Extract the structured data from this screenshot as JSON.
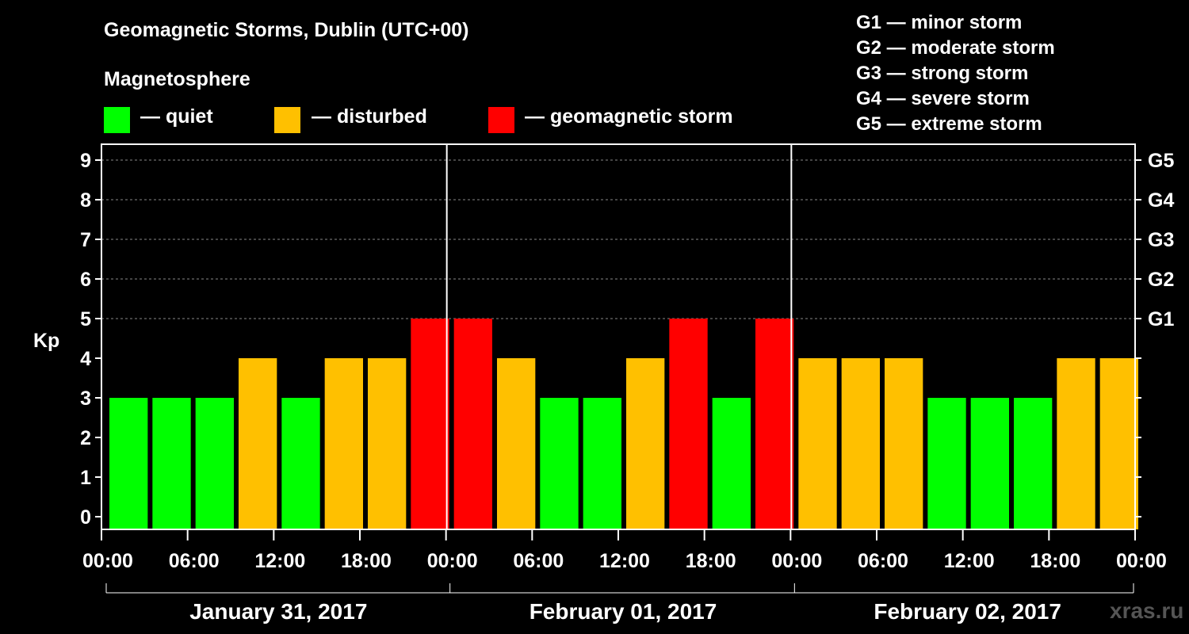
{
  "title": "Geomagnetic Storms, Dublin (UTC+00)",
  "magnetosphere": {
    "heading": "Magnetosphere",
    "items": [
      {
        "label": "— quiet",
        "color": "#00ff00"
      },
      {
        "label": "— disturbed",
        "color": "#ffc000"
      },
      {
        "label": "— geomagnetic storm",
        "color": "#ff0000"
      }
    ]
  },
  "storm_scale": [
    "G1 — minor storm",
    "G2 — moderate storm",
    "G3 — strong storm",
    "G4 — severe storm",
    "G5 — extreme storm"
  ],
  "watermark": "xras.ru",
  "chart_data": {
    "type": "bar",
    "title": "Geomagnetic Storms, Dublin (UTC+00)",
    "ylabel": "Kp",
    "ylim": [
      0,
      9
    ],
    "yticks": [
      "0",
      "1",
      "2",
      "3",
      "4",
      "5",
      "6",
      "7",
      "8",
      "9"
    ],
    "right_ticks": [
      {
        "label": "G1",
        "value": 5
      },
      {
        "label": "G2",
        "value": 6
      },
      {
        "label": "G3",
        "value": 7
      },
      {
        "label": "G4",
        "value": 8
      },
      {
        "label": "G5",
        "value": 9
      }
    ],
    "xticks": [
      "00:00",
      "06:00",
      "12:00",
      "18:00",
      "00:00",
      "06:00",
      "12:00",
      "18:00",
      "00:00",
      "06:00",
      "12:00",
      "18:00",
      "00:00"
    ],
    "days": [
      "January 31, 2017",
      "February 01, 2017",
      "February 02, 2017"
    ],
    "interval_hours": 3,
    "colors": {
      "quiet": "#00ff00",
      "disturbed": "#ffc000",
      "storm": "#ff0000"
    },
    "values": [
      3,
      3,
      3,
      4,
      3,
      4,
      4,
      5,
      5,
      4,
      3,
      3,
      4,
      5,
      3,
      5,
      4,
      4,
      4,
      3,
      3,
      3,
      4,
      4
    ],
    "status": [
      "quiet",
      "quiet",
      "quiet",
      "disturbed",
      "quiet",
      "disturbed",
      "disturbed",
      "storm",
      "storm",
      "disturbed",
      "quiet",
      "quiet",
      "disturbed",
      "storm",
      "quiet",
      "storm",
      "disturbed",
      "disturbed",
      "disturbed",
      "quiet",
      "quiet",
      "quiet",
      "disturbed",
      "disturbed"
    ]
  }
}
